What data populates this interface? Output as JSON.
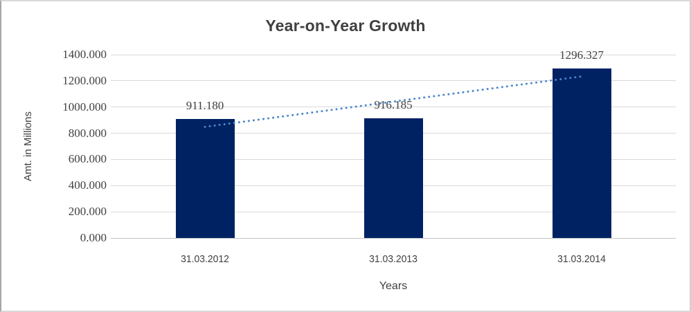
{
  "chart_data": {
    "type": "bar",
    "title": "Year-on-Year Growth",
    "xlabel": "Years",
    "ylabel": "Amt. in Millions",
    "categories": [
      "31.03.2012",
      "31.03.2013",
      "31.03.2014"
    ],
    "values": [
      911.18,
      916.185,
      1296.327
    ],
    "data_labels": [
      "911.180",
      "916.185",
      "1296.327"
    ],
    "y_ticks": [
      {
        "value": 1400,
        "label": "1400.000"
      },
      {
        "value": 1200,
        "label": "1200.000"
      },
      {
        "value": 1000,
        "label": "1000.000"
      },
      {
        "value": 800,
        "label": "800.000"
      },
      {
        "value": 600,
        "label": "600.000"
      },
      {
        "value": 400,
        "label": "400.000"
      },
      {
        "value": 200,
        "label": "200.000"
      },
      {
        "value": 0,
        "label": "0.000"
      }
    ],
    "ylim": [
      0,
      1400
    ],
    "grid": true,
    "legend": "none",
    "trendline": {
      "type": "linear",
      "style": "dotted"
    },
    "colors": {
      "bar": "#002263",
      "grid": "#d9d9d9",
      "axis": "#c3c3c3",
      "text": "#404040",
      "trend": "#4a86c9"
    }
  }
}
